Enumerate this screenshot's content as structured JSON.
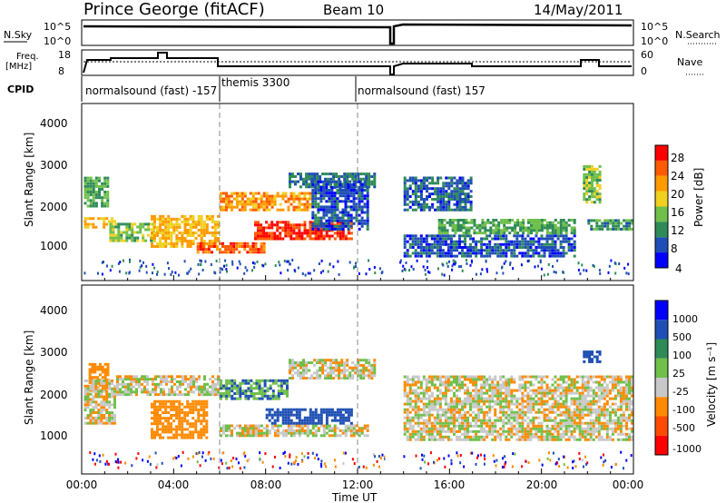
{
  "header": {
    "title": "Prince George (fitACF)",
    "beam": "Beam 10",
    "date": "14/May/2011"
  },
  "summary_panels": {
    "nsky_label": "N.Sky",
    "nsearch_label": "N.Search",
    "nsky_ticks": [
      "10^5",
      "10^0"
    ],
    "nsearch_ticks": [
      "10^5",
      "10^0"
    ],
    "freq_label_1": "Freq.",
    "freq_label_2": "[MHz]",
    "freq_ticks": [
      "18",
      "8"
    ],
    "nave_label": "Nave",
    "nave_ticks": [
      "60",
      "0"
    ],
    "cpid_label": "CPID",
    "cpid_segments": [
      {
        "label": "normalsound (fast) -157",
        "start_h": 0,
        "end_h": 6
      },
      {
        "label": "themis 3300",
        "start_h": 6,
        "end_h": 12
      },
      {
        "label": "normalsound (fast) 157",
        "start_h": 12,
        "end_h": 24
      }
    ]
  },
  "power_panel": {
    "ylabel": "Slant Range [km]",
    "yticks": [
      "4000",
      "3000",
      "2000",
      "1000"
    ],
    "colorbar_label": "Power [dB]",
    "colorbar_ticks": [
      "28",
      "24",
      "20",
      "16",
      "12",
      "8",
      "4"
    ]
  },
  "velocity_panel": {
    "ylabel": "Slant Range [km]",
    "yticks": [
      "4000",
      "3000",
      "2000",
      "1000"
    ],
    "colorbar_label": "Velocity [m s⁻¹]",
    "colorbar_ticks": [
      "1000",
      "500",
      "100",
      "25",
      "-25",
      "-100",
      "-500",
      "-1000"
    ]
  },
  "xaxis": {
    "label": "Time UT",
    "ticks": [
      "00:00",
      "04:00",
      "08:00",
      "12:00",
      "16:00",
      "20:00",
      "00:00"
    ]
  },
  "colors": {
    "power_scale": [
      "#0000ff",
      "#1f4fb4",
      "#2e8b57",
      "#6fbf4a",
      "#f0d020",
      "#ff9a00",
      "#ff5a00",
      "#ff0000"
    ],
    "velocity_scale": [
      "#0000ff",
      "#1f4fb4",
      "#2e8b57",
      "#6fbf4a",
      "#c8c8c8",
      "#ff8a00",
      "#ff4a00",
      "#ff0000"
    ]
  },
  "chart_data": [
    {
      "type": "heatmap",
      "title": "Power",
      "x_unit": "hours UT",
      "xlim": [
        0,
        24
      ],
      "ylim": [
        0,
        4600
      ],
      "ylabel": "Slant Range [km]",
      "xlabel": "Time UT",
      "colorbar": {
        "label": "Power [dB]",
        "ticks": [
          28,
          24,
          20,
          16,
          12,
          8,
          4
        ]
      },
      "regions": [
        {
          "t0": 0.1,
          "t1": 1.2,
          "r0": 1900,
          "r1": 2700,
          "power": 12
        },
        {
          "t0": 0.1,
          "t1": 1.5,
          "r0": 1350,
          "r1": 1650,
          "power": 20
        },
        {
          "t0": 1.2,
          "t1": 3.2,
          "r0": 1000,
          "r1": 1500,
          "power": 14
        },
        {
          "t0": 3.0,
          "t1": 6.0,
          "r0": 850,
          "r1": 1700,
          "power": 20
        },
        {
          "t0": 5.0,
          "t1": 8.0,
          "r0": 700,
          "r1": 1000,
          "power": 26
        },
        {
          "t0": 6.0,
          "t1": 10.0,
          "r0": 1800,
          "r1": 2300,
          "power": 22
        },
        {
          "t0": 7.5,
          "t1": 11.8,
          "r0": 1050,
          "r1": 1550,
          "power": 28
        },
        {
          "t0": 9.0,
          "t1": 12.8,
          "r0": 2400,
          "r1": 2800,
          "power": 8
        },
        {
          "t0": 10.0,
          "t1": 12.5,
          "r0": 1300,
          "r1": 2600,
          "power": 6
        },
        {
          "t0": 14.0,
          "t1": 17.0,
          "r0": 1800,
          "r1": 2700,
          "power": 7
        },
        {
          "t0": 15.5,
          "t1": 21.5,
          "r0": 1200,
          "r1": 1600,
          "power": 12
        },
        {
          "t0": 14.0,
          "t1": 21.5,
          "r0": 600,
          "r1": 1200,
          "power": 6
        },
        {
          "t0": 21.8,
          "t1": 22.6,
          "r0": 2000,
          "r1": 3000,
          "power": 14
        },
        {
          "t0": 22.0,
          "t1": 24.0,
          "r0": 1300,
          "r1": 1600,
          "power": 10
        }
      ]
    },
    {
      "type": "heatmap",
      "title": "Velocity",
      "x_unit": "hours UT",
      "xlim": [
        0,
        24
      ],
      "ylim": [
        0,
        4600
      ],
      "ylabel": "Slant Range [km]",
      "xlabel": "Time UT",
      "colorbar": {
        "label": "Velocity [m s⁻¹]",
        "ticks": [
          1000,
          500,
          100,
          25,
          -25,
          -100,
          -500,
          -1000
        ]
      },
      "regions": [
        {
          "t0": 0.3,
          "t1": 1.2,
          "r0": 2000,
          "r1": 2700,
          "velocity": -150
        },
        {
          "t0": 0.1,
          "t1": 1.5,
          "r0": 1200,
          "r1": 2300,
          "velocity": 0
        },
        {
          "t0": 1.5,
          "t1": 6.0,
          "r0": 1900,
          "r1": 2400,
          "velocity": 0
        },
        {
          "t0": 3.0,
          "t1": 5.5,
          "r0": 850,
          "r1": 1800,
          "velocity": -300
        },
        {
          "t0": 6.0,
          "t1": 12.5,
          "r0": 900,
          "r1": 1200,
          "velocity": 0
        },
        {
          "t0": 6.0,
          "t1": 9.0,
          "r0": 1800,
          "r1": 2300,
          "velocity": 100
        },
        {
          "t0": 8.0,
          "t1": 11.8,
          "r0": 1200,
          "r1": 1600,
          "velocity": 300
        },
        {
          "t0": 9.0,
          "t1": 12.8,
          "r0": 2300,
          "r1": 2800,
          "velocity": 0
        },
        {
          "t0": 14.0,
          "t1": 24.0,
          "r0": 800,
          "r1": 2400,
          "velocity": 0
        },
        {
          "t0": 21.8,
          "t1": 22.6,
          "r0": 2700,
          "r1": 3000,
          "velocity": 300
        }
      ]
    }
  ]
}
